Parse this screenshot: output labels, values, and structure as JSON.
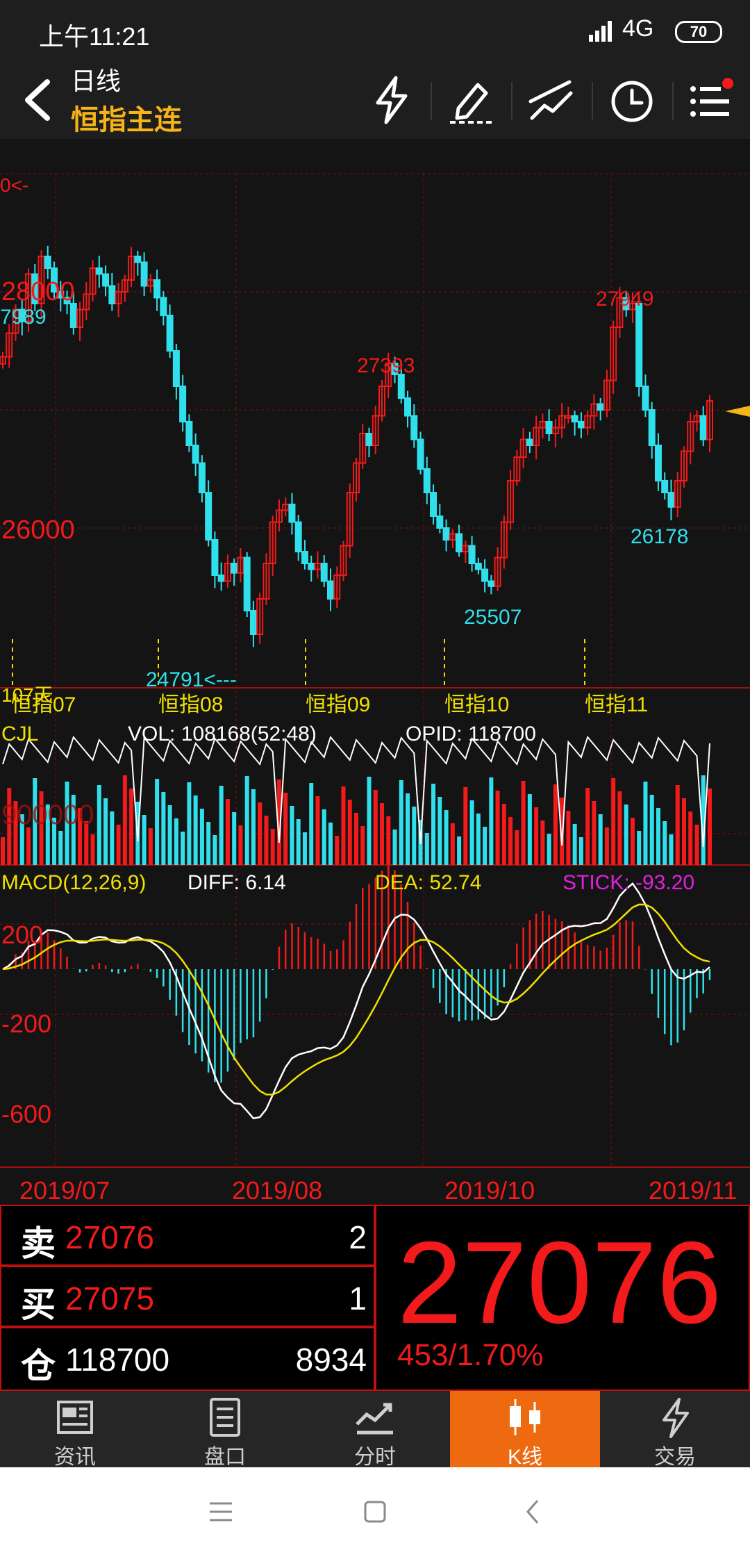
{
  "status_bar": {
    "time": "上午11:21",
    "network": "4G",
    "battery": "70"
  },
  "header": {
    "subtitle": "日线",
    "title": "恒指主连",
    "icons": [
      "back-icon",
      "lightning-icon",
      "pen-icon",
      "draw-lines-icon",
      "clock-icon",
      "menu-icon"
    ]
  },
  "chart_data": [
    {
      "type": "candlestick",
      "price_labels": [
        "28000",
        "26000"
      ],
      "left_edge_labels": [
        "0<-",
        "7989"
      ],
      "annotations": [
        {
          "label": "27393",
          "value": 27393
        },
        {
          "label": "27949",
          "value": 27949
        },
        {
          "label": "25507",
          "value": 25507
        },
        {
          "label": "26178",
          "value": 26178
        },
        {
          "label": "24791<---",
          "value": 24791
        }
      ],
      "contract_labels": [
        "恒指07",
        "恒指08",
        "恒指09",
        "恒指10",
        "恒指11"
      ],
      "overlay_label": "107天",
      "closes": [
        27450,
        27650,
        27850,
        27750,
        28150,
        27900,
        28300,
        28200,
        28000,
        27950,
        27900,
        27700,
        27850,
        27980,
        28200,
        28150,
        28050,
        27900,
        28000,
        28100,
        28300,
        28250,
        28050,
        28100,
        27950,
        27800,
        27500,
        27200,
        26900,
        26700,
        26550,
        26300,
        25900,
        25600,
        25550,
        25700,
        25620,
        25750,
        25300,
        25100,
        25400,
        25700,
        26050,
        26150,
        26200,
        26050,
        25800,
        25700,
        25650,
        25700,
        25550,
        25400,
        25600,
        25850,
        26300,
        26550,
        26800,
        26700,
        26950,
        27200,
        27393,
        27300,
        27100,
        26950,
        26750,
        26500,
        26300,
        26100,
        26000,
        25900,
        25950,
        25800,
        25850,
        25700,
        25650,
        25550,
        25507,
        25750,
        26050,
        26400,
        26600,
        26750,
        26700,
        26850,
        26900,
        26800,
        26850,
        26950,
        26950,
        26900,
        26850,
        26950,
        27050,
        27000,
        27250,
        27700,
        27949,
        27850,
        27900,
        27200,
        27000,
        26700,
        26400,
        26300,
        26178,
        26400,
        26650,
        26900,
        26950,
        26750,
        27076
      ]
    },
    {
      "type": "bar",
      "name": "CJL",
      "vol_label": "VOL: 108168(52:48)",
      "opid_label": "OPID: 118700",
      "overlay_text": "900000"
    },
    {
      "type": "line",
      "name": "MACD(12,26,9)",
      "diff_label": "DIFF: 6.14",
      "dea_label": "DEA: 52.74",
      "stick_label": "STICK: -93.20",
      "y_labels": [
        "200",
        "-200",
        "-600"
      ],
      "x_labels": [
        "2019/07",
        "2019/08",
        "2019/10",
        "2019/11"
      ]
    }
  ],
  "quote": {
    "sell_label": "卖",
    "sell_price": "27076",
    "sell_qty": "2",
    "buy_label": "买",
    "buy_price": "27075",
    "buy_qty": "1",
    "oi_label": "仓",
    "oi_value": "118700",
    "oi_change": "8934",
    "last_price": "27076",
    "change": "453/1.70%"
  },
  "tabs": [
    {
      "label": "资讯",
      "icon": "news-icon"
    },
    {
      "label": "盘口",
      "icon": "orderbook-icon"
    },
    {
      "label": "分时",
      "icon": "intraday-icon"
    },
    {
      "label": "K线",
      "icon": "candlestick-icon",
      "active": true
    },
    {
      "label": "交易",
      "icon": "trade-icon"
    }
  ],
  "colors": {
    "up": "#f21a1a",
    "down": "#2fe0ec",
    "accent": "#f5b417",
    "tab_active": "#ee6a10",
    "macd_dea": "#f0e000",
    "stick": "#e020e0"
  }
}
